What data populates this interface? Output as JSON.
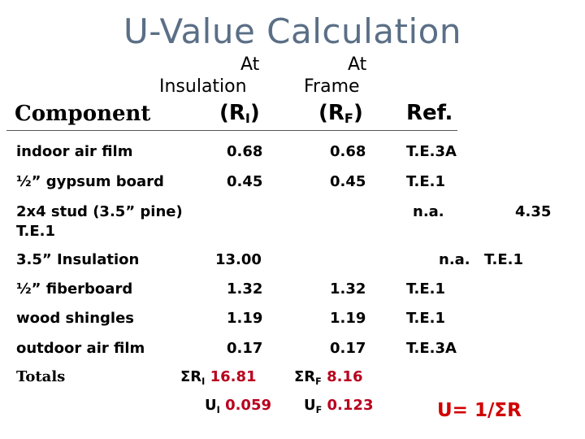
{
  "title": "U-Value Calculation",
  "colors": {
    "title": "#5a6f86",
    "value": "#b8001e",
    "formula": "#d10000",
    "text": "#000000"
  },
  "headers": {
    "component": "Component",
    "insulation_line1": "At",
    "insulation_line2": "Insulation",
    "insulation_sym": "R",
    "insulation_sub": "I",
    "frame_line1": "At",
    "frame_line2": "Frame",
    "frame_sym": "R",
    "frame_sub": "F",
    "ref": "Ref."
  },
  "rows": [
    {
      "component": "indoor air film",
      "insulation": "0.68",
      "frame": "0.68",
      "ref": "T.E.3A"
    },
    {
      "component": "½” gypsum board",
      "insulation": "0.45",
      "frame": "0.45",
      "ref": "T.E.1"
    },
    {
      "component_line1": "2x4 stud (3.5” pine)",
      "component_line2": "T.E.1",
      "insulation": "n.a.",
      "frame": "4.35"
    },
    {
      "component": "3.5” Insulation",
      "insulation": "13.00",
      "frame": "n.a.",
      "ref": "T.E.1"
    },
    {
      "component": "½” fiberboard",
      "insulation": "1.32",
      "frame": "1.32",
      "ref": "T.E.1"
    },
    {
      "component": "wood shingles",
      "insulation": "1.19",
      "frame": "1.19",
      "ref": "T.E.1"
    },
    {
      "component": "outdoor air film",
      "insulation": "0.17",
      "frame": "0.17",
      "ref": "T.E.3A"
    }
  ],
  "totals": {
    "label": "Totals",
    "sum_ri_prefix": "ΣR",
    "sum_ri_sub": "I",
    "sum_ri_value": "16.81",
    "sum_rf_prefix": "ΣR",
    "sum_rf_sub": "F",
    "sum_rf_value": "8.16"
  },
  "u_values": {
    "ui_prefix": "U",
    "ui_sub": "I",
    "ui_value": "0.059",
    "uf_prefix": "U",
    "uf_sub": "F",
    "uf_value": "0.123",
    "formula": "U= 1/ΣR"
  }
}
